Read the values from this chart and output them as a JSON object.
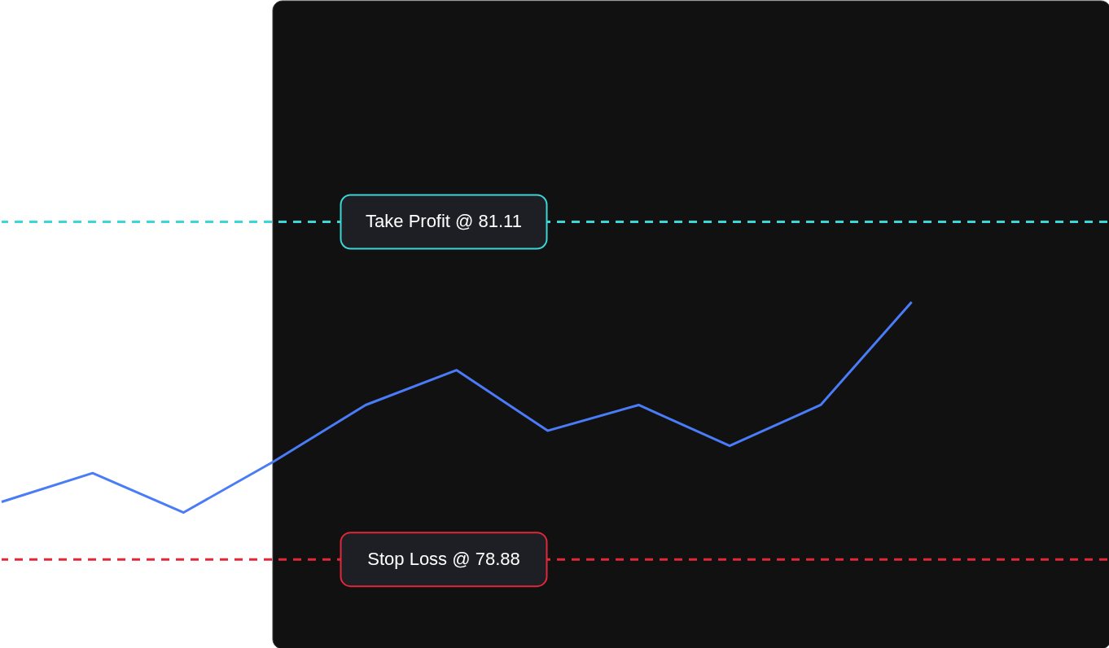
{
  "chart_data": {
    "type": "line",
    "categories": [
      null,
      null,
      null,
      null,
      null,
      null,
      null,
      null,
      null,
      null,
      null
    ],
    "series": [
      {
        "color": "#4a7cf7",
        "values": [
          79.26,
          79.45,
          79.19,
          79.53,
          79.9,
          80.13,
          79.73,
          79.9,
          79.63,
          79.9,
          80.58
        ]
      }
    ],
    "ylim": [
      78.3,
      82.57
    ],
    "yticks": [
      {
        "value": 81.11,
        "label": "Take Profit @ 81.11"
      },
      {
        "value": 78.88,
        "label": "Stop Loss @ 78.88"
      }
    ],
    "tick_labels": "y",
    "ref_lines": [
      {
        "axis": "y",
        "value": 81.11,
        "color": "#3dd6d6",
        "line_style": "dashed"
      },
      {
        "axis": "y",
        "value": 78.88,
        "color": "#e0283a",
        "line_style": "dashed"
      }
    ],
    "marker": "none",
    "line_style": "solid"
  }
}
